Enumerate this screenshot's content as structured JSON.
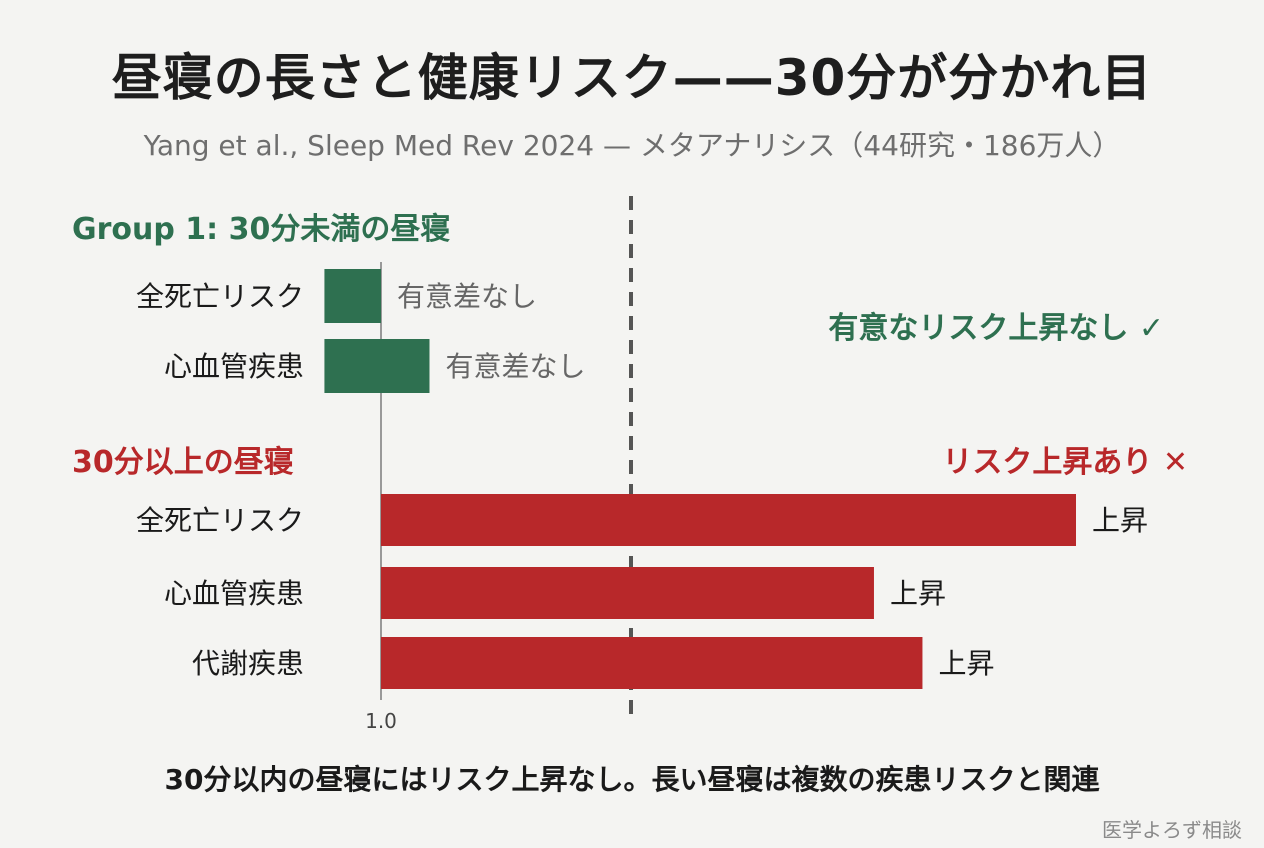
{
  "title": "昼寝の長さと健康リスク——30分が分かれ目",
  "subtitle": "Yang et al., Sleep Med Rev 2024 — メタアナリシス（44研究・186万人）",
  "footer": "30分以内の昼寝にはリスク上昇なし。長い昼寝は複数の疾患リスクと関連",
  "credit": "医学よろず相談",
  "colors": {
    "green": "#2e7050",
    "red": "#b8282a"
  },
  "chart_data": {
    "type": "bar",
    "orientation": "horizontal",
    "reference_value": 1.0,
    "reference_label": "1.0",
    "groups": [
      {
        "name": "Group 1: 30分未満の昼寝",
        "verdict": "有意なリスク上昇なし ✓",
        "color": "#2e7050",
        "items": [
          {
            "category": "全死亡リスク",
            "label": "有意差なし",
            "lower": 0.93,
            "upper": 1.0
          },
          {
            "category": "心血管疾患",
            "label": "有意差なし",
            "lower": 0.93,
            "upper": 1.06
          }
        ]
      },
      {
        "name": "30分以上の昼寝",
        "verdict": "リスク上昇あり ✕",
        "color": "#b8282a",
        "items": [
          {
            "category": "全死亡リスク",
            "label": "上昇",
            "lower": 1.0,
            "upper": 1.86
          },
          {
            "category": "心血管疾患",
            "label": "上昇",
            "lower": 1.0,
            "upper": 1.61
          },
          {
            "category": "代謝疾患",
            "label": "上昇",
            "lower": 1.0,
            "upper": 1.67
          }
        ]
      }
    ]
  }
}
